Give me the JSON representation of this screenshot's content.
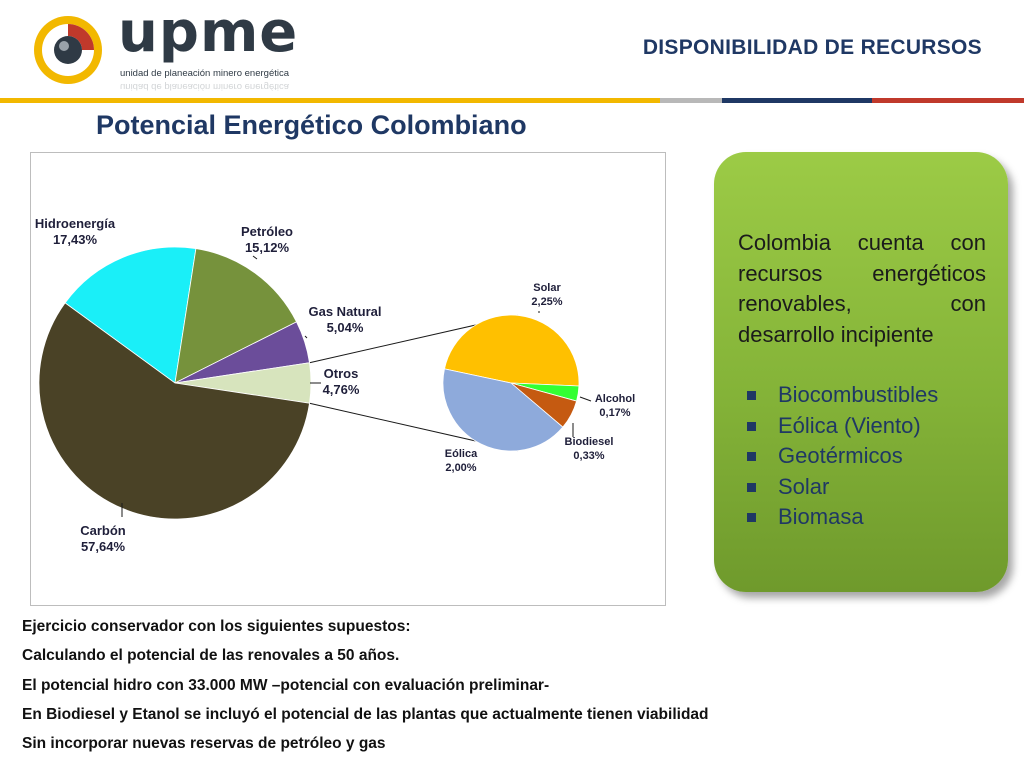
{
  "header": {
    "logo_word": "upme",
    "logo_subtitle": "unidad de planeación minero energética",
    "section_title": "DISPONIBILIDAD DE RECURSOS",
    "bar_colors": [
      "#f2b800",
      "#b8b8b8",
      "#1f3864",
      "#c0392b"
    ]
  },
  "page_title": "Potencial Energético Colombiano",
  "chart_data": [
    {
      "type": "pie",
      "slices": [
        {
          "label": "Hidroenergía",
          "value": 17.43,
          "value_label": "17,43%",
          "color": "#1aeff8"
        },
        {
          "label": "Petróleo",
          "value": 15.12,
          "value_label": "15,12%",
          "color": "#76923c"
        },
        {
          "label": "Gas Natural",
          "value": 5.04,
          "value_label": "5,04%",
          "color": "#6b4d9a"
        },
        {
          "label": "Otros",
          "value": 4.76,
          "value_label": "4,76%",
          "color": "#d7e4bd"
        },
        {
          "label": "Carbón",
          "value": 57.64,
          "value_label": "57,64%",
          "color": "#4a4226"
        }
      ]
    },
    {
      "type": "pie",
      "slices": [
        {
          "label": "Solar",
          "value": 2.25,
          "value_label": "2,25%",
          "color": "#ffc000"
        },
        {
          "label": "Alcohol",
          "value": 0.17,
          "value_label": "0,17%",
          "color": "#33ff33"
        },
        {
          "label": "Biodiesel",
          "value": 0.33,
          "value_label": "0,33%",
          "color": "#c55a11"
        },
        {
          "label": "Eólica",
          "value": 2.0,
          "value_label": "2,00%",
          "color": "#8eaadb"
        }
      ]
    }
  ],
  "callout": {
    "text": "Colombia cuenta con recursos energéticos renovables, con desarrollo incipiente",
    "items": [
      "Biocombustibles",
      "Eólica (Viento)",
      "Geotérmicos",
      "Solar",
      "Biomasa"
    ]
  },
  "notes": [
    "Ejercicio conservador con los siguientes supuestos:",
    "Calculando el potencial de las renovales a 50 años.",
    "El potencial hidro con 33.000 MW –potencial con evaluación preliminar-",
    "En Biodiesel y Etanol se incluyó el potencial de las plantas que actualmente tienen viabilidad",
    "Sin incorporar nuevas reservas de petróleo y gas"
  ]
}
